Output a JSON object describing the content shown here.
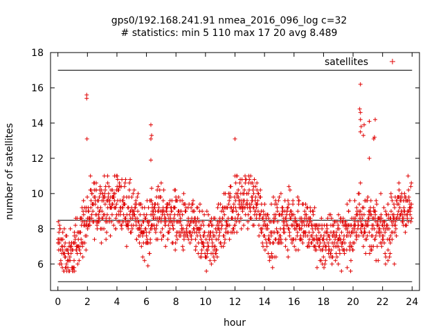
{
  "chart_data": {
    "type": "scatter",
    "title": "gps0/192.168.241.91 nmea_2016_096_log c=32",
    "subtitle": "# statistics: min 5 110 max 17 20 avg 8.489",
    "xlabel": "hour",
    "ylabel": "number of satellites",
    "xlim": [
      -0.5,
      24.5
    ],
    "ylim": [
      4.5,
      18
    ],
    "xticks": [
      0,
      2,
      4,
      6,
      8,
      10,
      12,
      14,
      16,
      18,
      20,
      22,
      24
    ],
    "yticks": [
      6,
      8,
      10,
      12,
      14,
      16,
      18
    ],
    "grid": false,
    "legend_position": "top-right",
    "reference_lines": [
      17,
      8.489,
      5
    ],
    "colors": {
      "series": "#e00000",
      "lines": "#000000"
    },
    "series": [
      {
        "name": "satellites",
        "marker": "+",
        "profile": [
          [
            0,
            7.2
          ],
          [
            0.5,
            6.6
          ],
          [
            1,
            6.4
          ],
          [
            1.5,
            7.8
          ],
          [
            2,
            8.6
          ],
          [
            2.5,
            9.2
          ],
          [
            3,
            9.4
          ],
          [
            3.5,
            9.3
          ],
          [
            4,
            9.7
          ],
          [
            4.5,
            9.2
          ],
          [
            5,
            8.8
          ],
          [
            5.5,
            8.4
          ],
          [
            6,
            7.8
          ],
          [
            6.5,
            8.8
          ],
          [
            7,
            8.9
          ],
          [
            7.5,
            8.6
          ],
          [
            8,
            8.7
          ],
          [
            8.5,
            8.2
          ],
          [
            9,
            8.0
          ],
          [
            9.5,
            7.8
          ],
          [
            10,
            7.0
          ],
          [
            10.5,
            7.4
          ],
          [
            11,
            8.0
          ],
          [
            11.5,
            8.8
          ],
          [
            12,
            9.2
          ],
          [
            12.5,
            9.6
          ],
          [
            13,
            9.7
          ],
          [
            13.5,
            9.4
          ],
          [
            14,
            8.2
          ],
          [
            14.5,
            7.8
          ],
          [
            15,
            8.3
          ],
          [
            15.5,
            8.5
          ],
          [
            16,
            8.3
          ],
          [
            16.5,
            8.5
          ],
          [
            17,
            8.0
          ],
          [
            17.5,
            7.6
          ],
          [
            18,
            7.2
          ],
          [
            18.5,
            7.3
          ],
          [
            19,
            7.6
          ],
          [
            19.5,
            7.8
          ],
          [
            20,
            7.6
          ],
          [
            20.5,
            8.9
          ],
          [
            21,
            8.4
          ],
          [
            21.5,
            8.0
          ],
          [
            22,
            7.8
          ],
          [
            22.5,
            8.1
          ],
          [
            23,
            9.0
          ],
          [
            23.5,
            9.2
          ],
          [
            24,
            9.1
          ]
        ],
        "outliers": [
          [
            1.95,
            15.6
          ],
          [
            1.95,
            15.4
          ],
          [
            1.97,
            13.1
          ],
          [
            6.3,
            13.9
          ],
          [
            6.35,
            13.3
          ],
          [
            6.3,
            13.1
          ],
          [
            6.3,
            11.9
          ],
          [
            6.35,
            10.3
          ],
          [
            12.0,
            13.1
          ],
          [
            12.0,
            11.0
          ],
          [
            20.5,
            16.2
          ],
          [
            20.45,
            14.8
          ],
          [
            20.5,
            14.6
          ],
          [
            20.5,
            14.2
          ],
          [
            20.55,
            13.8
          ],
          [
            20.5,
            13.5
          ],
          [
            20.7,
            13.3
          ],
          [
            20.75,
            13.9
          ],
          [
            20.5,
            10.6
          ],
          [
            21.1,
            14.1
          ],
          [
            21.5,
            14.2
          ],
          [
            21.4,
            13.1
          ],
          [
            21.45,
            13.2
          ],
          [
            21.1,
            12.0
          ],
          [
            1.0,
            5.7
          ],
          [
            1.1,
            5.8
          ],
          [
            0.3,
            5.8
          ],
          [
            10.4,
            6.0
          ],
          [
            15.6,
            6.4
          ],
          [
            22.8,
            6.0
          ],
          [
            19.0,
            6.0
          ],
          [
            6.1,
            5.9
          ]
        ]
      }
    ]
  }
}
